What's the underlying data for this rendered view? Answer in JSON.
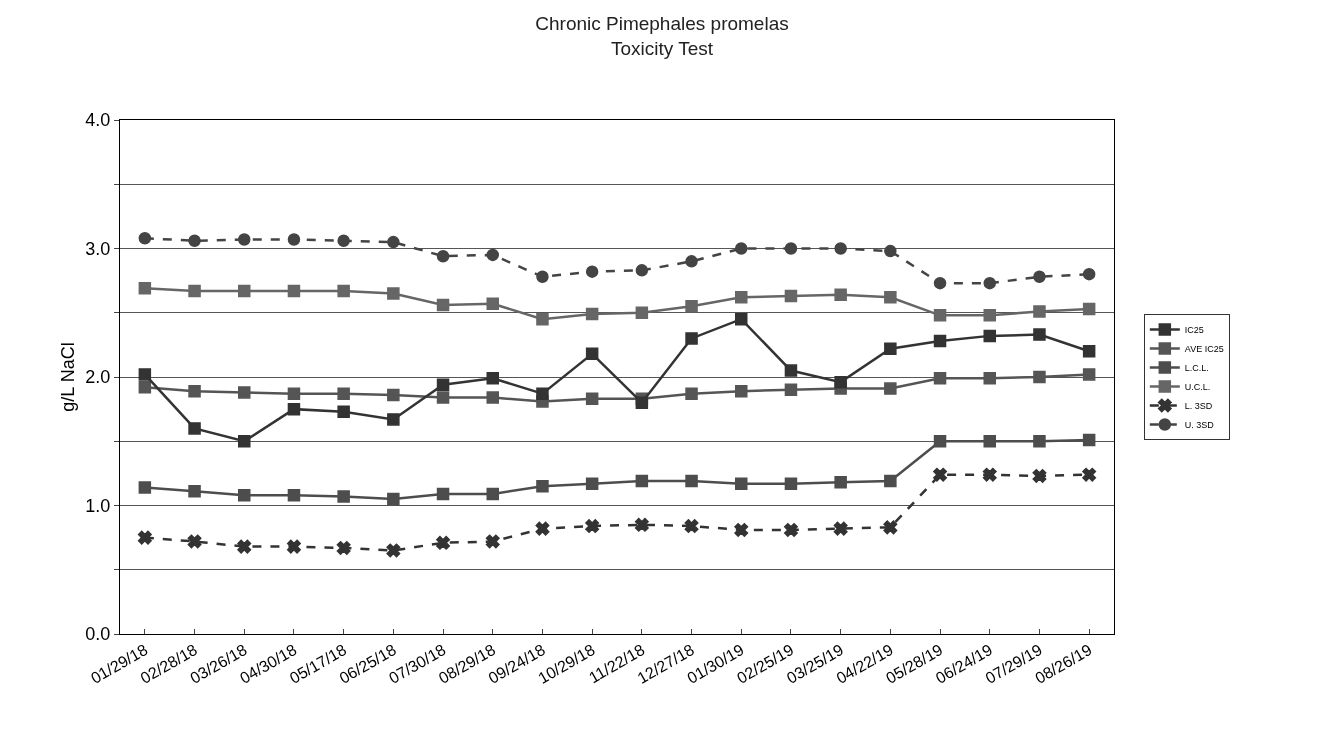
{
  "chart_data": {
    "type": "line",
    "title": "Chronic Pimephales promelas\nToxicity Test",
    "ylabel": "g/L NaCl",
    "categories": [
      "01/29/18",
      "02/28/18",
      "03/26/18",
      "04/30/18",
      "05/17/18",
      "06/25/18",
      "07/30/18",
      "08/29/18",
      "09/24/18",
      "10/29/18",
      "11/22/18",
      "12/27/18",
      "01/30/19",
      "02/25/19",
      "03/25/19",
      "04/22/19",
      "05/28/19",
      "06/24/19",
      "07/29/19",
      "08/26/19"
    ],
    "series": [
      {
        "name": "IC25",
        "color": "#333333",
        "marker": "square",
        "line_style": "solid",
        "values": [
          2.02,
          1.6,
          1.5,
          1.75,
          1.73,
          1.67,
          1.94,
          1.99,
          1.87,
          2.18,
          1.8,
          2.3,
          2.45,
          2.05,
          1.96,
          2.22,
          2.28,
          2.32,
          2.33,
          2.2
        ]
      },
      {
        "name": "AVE IC25",
        "color": "#555555",
        "marker": "square",
        "line_style": "solid",
        "values": [
          1.92,
          1.89,
          1.88,
          1.87,
          1.87,
          1.86,
          1.84,
          1.84,
          1.81,
          1.83,
          1.83,
          1.87,
          1.89,
          1.9,
          1.91,
          1.91,
          1.99,
          1.99,
          2.0,
          2.02
        ]
      },
      {
        "name": "L.C.L.",
        "color": "#4d4d4d",
        "marker": "square",
        "line_style": "solid",
        "values": [
          1.14,
          1.11,
          1.08,
          1.08,
          1.07,
          1.05,
          1.09,
          1.09,
          1.15,
          1.17,
          1.19,
          1.19,
          1.17,
          1.17,
          1.18,
          1.19,
          1.5,
          1.5,
          1.5,
          1.51
        ]
      },
      {
        "name": "U.C.L.",
        "color": "#666666",
        "marker": "square",
        "line_style": "solid",
        "values": [
          2.69,
          2.67,
          2.67,
          2.67,
          2.67,
          2.65,
          2.56,
          2.57,
          2.45,
          2.49,
          2.5,
          2.55,
          2.62,
          2.63,
          2.64,
          2.62,
          2.48,
          2.48,
          2.51,
          2.53
        ]
      },
      {
        "name": "L. 3SD",
        "color": "#333333",
        "marker": "cross",
        "line_style": "dashed",
        "values": [
          0.75,
          0.72,
          0.68,
          0.68,
          0.67,
          0.65,
          0.71,
          0.72,
          0.82,
          0.84,
          0.85,
          0.84,
          0.81,
          0.81,
          0.82,
          0.83,
          1.24,
          1.24,
          1.23,
          1.24
        ]
      },
      {
        "name": "U. 3SD",
        "color": "#444444",
        "marker": "circle",
        "line_style": "dashed",
        "values": [
          3.08,
          3.06,
          3.07,
          3.07,
          3.06,
          3.05,
          2.94,
          2.95,
          2.78,
          2.82,
          2.83,
          2.9,
          3.0,
          3.0,
          3.0,
          2.98,
          2.73,
          2.73,
          2.78,
          2.8
        ]
      }
    ],
    "ylim": [
      0,
      4
    ],
    "yticks": [
      {
        "value": 0,
        "label": "0.0"
      },
      {
        "value": 0.5,
        "label": null
      },
      {
        "value": 1,
        "label": "1.0"
      },
      {
        "value": 1.5,
        "label": null
      },
      {
        "value": 2,
        "label": "2.0"
      },
      {
        "value": 2.5,
        "label": null
      },
      {
        "value": 3,
        "label": "3.0"
      },
      {
        "value": 3.5,
        "label": null
      },
      {
        "value": 4,
        "label": "4.0"
      }
    ],
    "grid": "y",
    "legend": "right"
  }
}
